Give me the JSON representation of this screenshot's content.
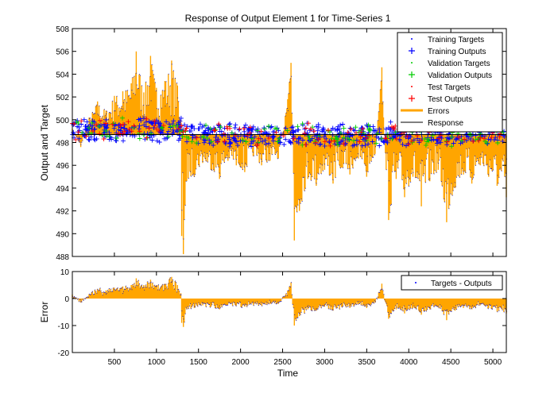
{
  "chart_data": [
    {
      "type": "line",
      "title": "Response of Output Element 1 for Time-Series 1",
      "xlabel": "",
      "ylabel": "Output and Target",
      "xlim": [
        0,
        5160
      ],
      "ylim": [
        488,
        508
      ],
      "yticks": [
        488,
        490,
        492,
        494,
        496,
        498,
        500,
        502,
        504,
        506,
        508
      ],
      "xticks": [
        500,
        1000,
        1500,
        2000,
        2500,
        3000,
        3500,
        4000,
        4500,
        5000
      ],
      "response_level": 498.7,
      "legend": {
        "placement": "top-right",
        "entries": [
          {
            "label": "Training Targets",
            "marker": "dot",
            "color": "#0000ff"
          },
          {
            "label": "Training Outputs",
            "marker": "plus",
            "color": "#0000ff"
          },
          {
            "label": "Validation Targets",
            "marker": "dot",
            "color": "#00cc00"
          },
          {
            "label": "Validation Outputs",
            "marker": "plus",
            "color": "#00cc00"
          },
          {
            "label": "Test Targets",
            "marker": "dot",
            "color": "#ff0000"
          },
          {
            "label": "Test Outputs",
            "marker": "plus",
            "color": "#ff0000"
          },
          {
            "label": "Errors",
            "marker": "line",
            "color": "#ffa500"
          },
          {
            "label": "Response",
            "marker": "line",
            "color": "#000000"
          }
        ]
      },
      "target_envelope": [
        {
          "x": 0,
          "y": 499.2
        },
        {
          "x": 100,
          "y": 497.6
        },
        {
          "x": 200,
          "y": 500.2
        },
        {
          "x": 300,
          "y": 501.6
        },
        {
          "x": 400,
          "y": 500.8
        },
        {
          "x": 500,
          "y": 502.1
        },
        {
          "x": 600,
          "y": 502.5
        },
        {
          "x": 700,
          "y": 503.2
        },
        {
          "x": 760,
          "y": 506.0
        },
        {
          "x": 850,
          "y": 502.4
        },
        {
          "x": 930,
          "y": 505.6
        },
        {
          "x": 1000,
          "y": 502.8
        },
        {
          "x": 1100,
          "y": 503.4
        },
        {
          "x": 1180,
          "y": 505.2
        },
        {
          "x": 1250,
          "y": 503.0
        },
        {
          "x": 1290,
          "y": 500.0
        },
        {
          "x": 1300,
          "y": 489.8
        },
        {
          "x": 1320,
          "y": 488.2
        },
        {
          "x": 1360,
          "y": 494.6
        },
        {
          "x": 1450,
          "y": 495.0
        },
        {
          "x": 1550,
          "y": 496.2
        },
        {
          "x": 1650,
          "y": 495.6
        },
        {
          "x": 1750,
          "y": 494.8
        },
        {
          "x": 1850,
          "y": 496.4
        },
        {
          "x": 1950,
          "y": 496.0
        },
        {
          "x": 2050,
          "y": 495.4
        },
        {
          "x": 2150,
          "y": 496.8
        },
        {
          "x": 2250,
          "y": 496.0
        },
        {
          "x": 2350,
          "y": 496.4
        },
        {
          "x": 2450,
          "y": 496.6
        },
        {
          "x": 2560,
          "y": 501.8
        },
        {
          "x": 2600,
          "y": 505.0
        },
        {
          "x": 2640,
          "y": 489.4
        },
        {
          "x": 2700,
          "y": 492.0
        },
        {
          "x": 2800,
          "y": 494.8
        },
        {
          "x": 2900,
          "y": 494.2
        },
        {
          "x": 3000,
          "y": 495.6
        },
        {
          "x": 3100,
          "y": 494.4
        },
        {
          "x": 3200,
          "y": 495.8
        },
        {
          "x": 3300,
          "y": 495.2
        },
        {
          "x": 3400,
          "y": 496.6
        },
        {
          "x": 3500,
          "y": 495.0
        },
        {
          "x": 3600,
          "y": 497.0
        },
        {
          "x": 3680,
          "y": 504.6
        },
        {
          "x": 3700,
          "y": 500.2
        },
        {
          "x": 3760,
          "y": 491.2
        },
        {
          "x": 3850,
          "y": 494.8
        },
        {
          "x": 3950,
          "y": 493.2
        },
        {
          "x": 4050,
          "y": 495.0
        },
        {
          "x": 4150,
          "y": 492.4
        },
        {
          "x": 4250,
          "y": 494.6
        },
        {
          "x": 4350,
          "y": 495.6
        },
        {
          "x": 4450,
          "y": 491.0
        },
        {
          "x": 4550,
          "y": 494.0
        },
        {
          "x": 4650,
          "y": 495.2
        },
        {
          "x": 4750,
          "y": 494.4
        },
        {
          "x": 4850,
          "y": 496.0
        },
        {
          "x": 4950,
          "y": 495.0
        },
        {
          "x": 5050,
          "y": 494.2
        },
        {
          "x": 5160,
          "y": 493.2
        }
      ]
    },
    {
      "type": "area",
      "xlabel": "Time",
      "ylabel": "Error",
      "xlim": [
        0,
        5160
      ],
      "ylim": [
        -20,
        10
      ],
      "yticks": [
        -20,
        -10,
        0,
        10
      ],
      "xticks": [
        500,
        1000,
        1500,
        2000,
        2500,
        3000,
        3500,
        4000,
        4500,
        5000
      ],
      "legend": {
        "placement": "top-right",
        "entries": [
          {
            "label": "Targets - Outputs",
            "marker": "dot",
            "color": "#0000ff"
          }
        ]
      },
      "error_envelope": [
        {
          "x": 0,
          "y": 1.5
        },
        {
          "x": 100,
          "y": -1.5
        },
        {
          "x": 200,
          "y": 1.5
        },
        {
          "x": 300,
          "y": 3.5
        },
        {
          "x": 400,
          "y": 3.0
        },
        {
          "x": 500,
          "y": 4.0
        },
        {
          "x": 600,
          "y": 4.5
        },
        {
          "x": 700,
          "y": 5.0
        },
        {
          "x": 760,
          "y": 7.5
        },
        {
          "x": 850,
          "y": 5.0
        },
        {
          "x": 930,
          "y": 7.0
        },
        {
          "x": 1000,
          "y": 5.0
        },
        {
          "x": 1100,
          "y": 5.5
        },
        {
          "x": 1180,
          "y": 8.0
        },
        {
          "x": 1250,
          "y": 5.0
        },
        {
          "x": 1290,
          "y": 2.0
        },
        {
          "x": 1300,
          "y": -9.0
        },
        {
          "x": 1320,
          "y": -10.5
        },
        {
          "x": 1360,
          "y": -4.0
        },
        {
          "x": 1450,
          "y": -3.5
        },
        {
          "x": 1550,
          "y": -2.5
        },
        {
          "x": 1650,
          "y": -3.0
        },
        {
          "x": 1750,
          "y": -4.0
        },
        {
          "x": 1850,
          "y": -2.0
        },
        {
          "x": 1950,
          "y": -2.5
        },
        {
          "x": 2050,
          "y": -3.0
        },
        {
          "x": 2150,
          "y": -2.0
        },
        {
          "x": 2250,
          "y": -2.5
        },
        {
          "x": 2350,
          "y": -2.0
        },
        {
          "x": 2450,
          "y": -2.0
        },
        {
          "x": 2560,
          "y": 3.0
        },
        {
          "x": 2600,
          "y": 6.0
        },
        {
          "x": 2640,
          "y": -10.0
        },
        {
          "x": 2700,
          "y": -6.5
        },
        {
          "x": 2800,
          "y": -4.0
        },
        {
          "x": 2900,
          "y": -4.5
        },
        {
          "x": 3000,
          "y": -3.0
        },
        {
          "x": 3100,
          "y": -4.5
        },
        {
          "x": 3200,
          "y": -3.0
        },
        {
          "x": 3300,
          "y": -3.5
        },
        {
          "x": 3400,
          "y": -2.0
        },
        {
          "x": 3500,
          "y": -3.5
        },
        {
          "x": 3600,
          "y": -1.5
        },
        {
          "x": 3680,
          "y": 5.5
        },
        {
          "x": 3700,
          "y": 1.5
        },
        {
          "x": 3760,
          "y": -7.5
        },
        {
          "x": 3850,
          "y": -4.0
        },
        {
          "x": 3950,
          "y": -5.5
        },
        {
          "x": 4050,
          "y": -3.5
        },
        {
          "x": 4150,
          "y": -6.0
        },
        {
          "x": 4250,
          "y": -4.0
        },
        {
          "x": 4350,
          "y": -3.0
        },
        {
          "x": 4450,
          "y": -8.0
        },
        {
          "x": 4550,
          "y": -4.5
        },
        {
          "x": 4650,
          "y": -3.5
        },
        {
          "x": 4750,
          "y": -4.0
        },
        {
          "x": 4850,
          "y": -2.5
        },
        {
          "x": 4950,
          "y": -3.5
        },
        {
          "x": 5050,
          "y": -4.5
        },
        {
          "x": 5160,
          "y": -5.5
        }
      ]
    }
  ]
}
